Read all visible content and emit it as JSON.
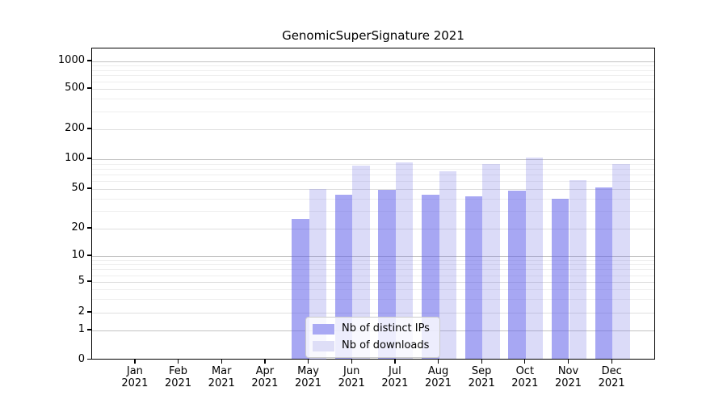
{
  "chart_data": {
    "type": "bar",
    "title": "GenomicSuperSignature 2021",
    "categories": [
      "Jan",
      "Feb",
      "Mar",
      "Apr",
      "May",
      "Jun",
      "Jul",
      "Aug",
      "Sep",
      "Oct",
      "Nov",
      "Dec"
    ],
    "year_label": "2021",
    "series": [
      {
        "key": "distinct-ips",
        "name": "Nb of distinct IPs",
        "color": "rgba(95,95,233,0.55)",
        "legend_color": "#a9a9f4",
        "values": [
          0,
          0,
          0,
          0,
          25,
          44,
          49,
          44,
          42,
          48,
          40,
          52
        ]
      },
      {
        "key": "downloads",
        "name": "Nb of downloads",
        "color": "rgba(110,110,226,0.25)",
        "legend_color": "#dedef7",
        "values": [
          0,
          0,
          0,
          0,
          50,
          86,
          92,
          75,
          89,
          103,
          61,
          90
        ]
      }
    ],
    "xlabel": "",
    "ylabel": "",
    "yscale": "symlog",
    "yticks": [
      0,
      1,
      2,
      5,
      10,
      20,
      50,
      100,
      200,
      500,
      1000
    ],
    "ylim": [
      0,
      1400
    ],
    "grid": true,
    "legend_position": "lower center",
    "colors": {
      "grid_major": "#c3c3c3",
      "grid_minor": "#eeeeee",
      "axis": "#000000"
    }
  }
}
